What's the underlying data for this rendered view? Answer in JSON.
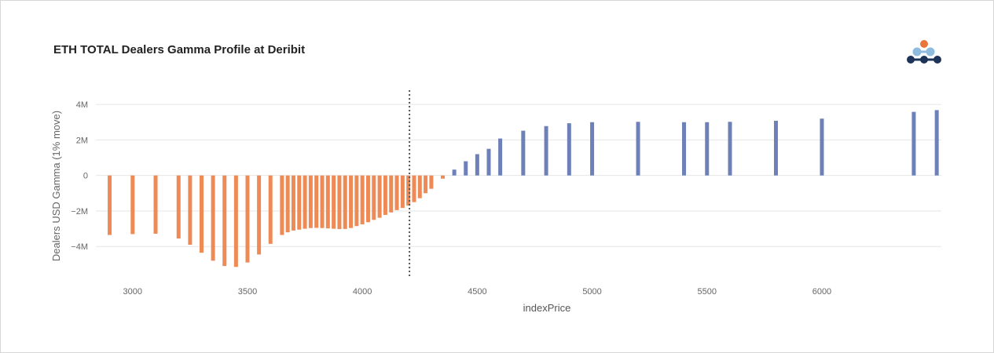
{
  "chart_data": {
    "type": "bar",
    "title": "ETH TOTAL Dealers Gamma Profile at Deribit",
    "xlabel": "indexPrice",
    "ylabel": "Dealers USD Gamma (1% move)",
    "xlim": [
      2840,
      6520
    ],
    "ylim": [
      -5800000,
      4800000
    ],
    "x_ticks": [
      3000,
      3500,
      4000,
      4500,
      5000,
      5500,
      6000
    ],
    "x_tick_labels": [
      "3000",
      "3500",
      "4000",
      "4500",
      "5000",
      "5500",
      "6000"
    ],
    "y_ticks": [
      -4000000,
      -2000000,
      0,
      2000000,
      4000000
    ],
    "y_tick_labels": [
      "−4M",
      "−2M",
      "0",
      "2M",
      "4M"
    ],
    "grid": true,
    "spot_marker": 4205,
    "colors": {
      "negative": "#ee8a55",
      "positive": "#6d80b8",
      "spot_line": "#555555"
    },
    "series": [
      {
        "points": [
          [
            2900,
            -3350000
          ],
          [
            3000,
            -3300000
          ],
          [
            3100,
            -3280000
          ],
          [
            3200,
            -3550000
          ],
          [
            3250,
            -3900000
          ],
          [
            3300,
            -4350000
          ],
          [
            3350,
            -4800000
          ],
          [
            3400,
            -5100000
          ],
          [
            3450,
            -5150000
          ],
          [
            3500,
            -4900000
          ],
          [
            3550,
            -4450000
          ],
          [
            3600,
            -3850000
          ],
          [
            3650,
            -3350000
          ],
          [
            3675,
            -3200000
          ],
          [
            3700,
            -3100000
          ],
          [
            3725,
            -3050000
          ],
          [
            3750,
            -3000000
          ],
          [
            3775,
            -2960000
          ],
          [
            3800,
            -2950000
          ],
          [
            3825,
            -2960000
          ],
          [
            3850,
            -2980000
          ],
          [
            3875,
            -3000000
          ],
          [
            3900,
            -3020000
          ],
          [
            3925,
            -3010000
          ],
          [
            3950,
            -2960000
          ],
          [
            3975,
            -2850000
          ],
          [
            4000,
            -2750000
          ],
          [
            4025,
            -2630000
          ],
          [
            4050,
            -2500000
          ],
          [
            4075,
            -2380000
          ],
          [
            4100,
            -2220000
          ],
          [
            4125,
            -2080000
          ],
          [
            4150,
            -1950000
          ],
          [
            4175,
            -1830000
          ],
          [
            4200,
            -1700000
          ],
          [
            4225,
            -1500000
          ],
          [
            4250,
            -1280000
          ],
          [
            4275,
            -1000000
          ],
          [
            4300,
            -750000
          ],
          [
            4350,
            -180000
          ],
          [
            4400,
            330000
          ],
          [
            4450,
            800000
          ],
          [
            4500,
            1200000
          ],
          [
            4550,
            1500000
          ],
          [
            4600,
            2080000
          ],
          [
            4700,
            2520000
          ],
          [
            4800,
            2780000
          ],
          [
            4900,
            2940000
          ],
          [
            5000,
            3000000
          ],
          [
            5200,
            3020000
          ],
          [
            5400,
            3000000
          ],
          [
            5500,
            3000000
          ],
          [
            5600,
            3020000
          ],
          [
            5800,
            3080000
          ],
          [
            6000,
            3200000
          ],
          [
            6400,
            3580000
          ],
          [
            6500,
            3680000
          ]
        ]
      }
    ]
  },
  "logo": {
    "top_dot_color": "#e8753a",
    "mid_dot_color": "#8fbcdc",
    "bottom_dot_color": "#1e3358"
  }
}
